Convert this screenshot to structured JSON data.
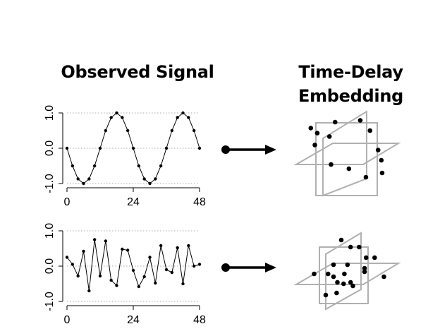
{
  "headings": {
    "left": "Observed Signal",
    "right_line1": "Time-Delay",
    "right_line2": "Embedding"
  },
  "chart_data": [
    {
      "type": "line",
      "x": [
        0,
        2,
        4,
        6,
        8,
        10,
        12,
        14,
        16,
        18,
        20,
        22,
        24,
        26,
        28,
        30,
        32,
        34,
        36,
        38,
        40,
        42,
        44,
        46,
        48
      ],
      "series": [
        {
          "values": [
            0,
            -0.5,
            -0.87,
            -1,
            -0.87,
            -0.5,
            0,
            0.5,
            0.87,
            1,
            0.87,
            0.5,
            0,
            -0.5,
            -0.87,
            -1,
            -0.87,
            -0.5,
            0,
            0.5,
            0.87,
            1,
            0.87,
            0.5,
            0
          ]
        }
      ],
      "xticks": [
        "0",
        "24",
        "48"
      ],
      "yticks": [
        "1.0",
        "0.0",
        "-1.0"
      ],
      "xlim": [
        0,
        48
      ],
      "ylim": [
        -1,
        1
      ],
      "grid": "dotted horizontal at -1, 0, 1",
      "markers": "filled circles"
    },
    {
      "type": "line",
      "x": [
        0,
        2,
        4,
        6,
        8,
        10,
        12,
        14,
        16,
        18,
        20,
        22,
        24,
        26,
        28,
        30,
        32,
        34,
        36,
        38,
        40,
        42,
        44,
        46,
        48
      ],
      "series": [
        {
          "values": [
            0.25,
            0.05,
            -0.28,
            0.42,
            -0.7,
            0.75,
            -0.28,
            0.71,
            -0.4,
            -0.55,
            0.48,
            0.45,
            -0.12,
            -0.58,
            -0.3,
            0.25,
            -0.48,
            0.58,
            -0.1,
            -0.18,
            0.52,
            -0.5,
            0.58,
            0.0,
            0.05
          ]
        }
      ],
      "xticks": [
        "0",
        "24",
        "48"
      ],
      "yticks": [
        "1.0",
        "0.0",
        "-1.0"
      ],
      "xlim": [
        0,
        48
      ],
      "ylim": [
        -1,
        1
      ],
      "grid": "dotted horizontal at -1, 0, 1",
      "markers": "filled circles"
    }
  ],
  "embeddings": [
    {
      "points": [
        [
          0.35,
          0.15
        ],
        [
          0.66,
          0.13
        ],
        [
          0.13,
          0.28
        ],
        [
          0.78,
          0.25
        ],
        [
          0.28,
          0.32
        ],
        [
          0.1,
          0.42
        ],
        [
          0.05,
          0.22
        ],
        [
          0.88,
          0.48
        ],
        [
          0.92,
          0.6
        ],
        [
          0.3,
          0.65
        ],
        [
          0.52,
          0.7
        ],
        [
          0.73,
          0.8
        ],
        [
          0.93,
          0.75
        ]
      ]
    },
    {
      "points": [
        [
          0.4,
          0.1
        ],
        [
          0.52,
          0.2
        ],
        [
          0.63,
          0.2
        ],
        [
          0.3,
          0.45
        ],
        [
          0.3,
          0.62
        ],
        [
          0.35,
          0.7
        ],
        [
          0.43,
          0.72
        ],
        [
          0.52,
          0.7
        ],
        [
          0.7,
          0.5
        ],
        [
          0.83,
          0.35
        ],
        [
          0.72,
          0.35
        ],
        [
          0.48,
          0.45
        ],
        [
          0.23,
          0.58
        ],
        [
          0.05,
          0.58
        ],
        [
          0.2,
          0.88
        ],
        [
          0.34,
          0.85
        ],
        [
          0.55,
          0.75
        ],
        [
          0.95,
          0.62
        ],
        [
          0.7,
          0.55
        ],
        [
          0.44,
          0.58
        ]
      ]
    }
  ]
}
